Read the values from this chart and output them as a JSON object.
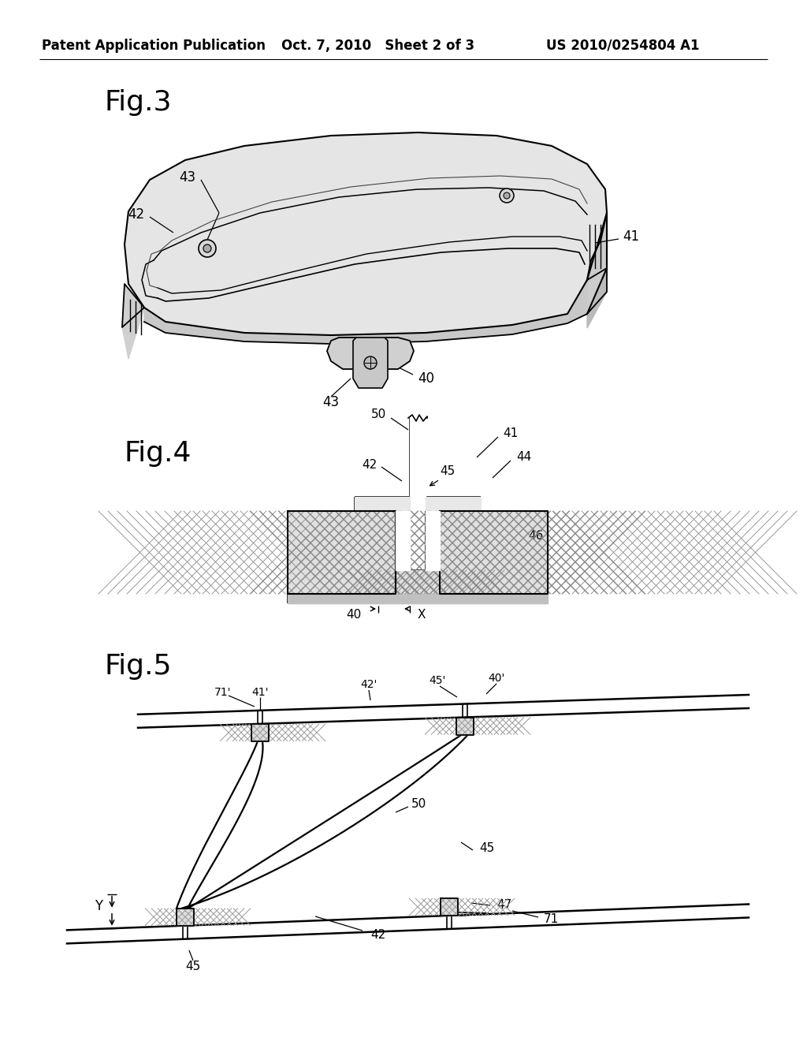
{
  "bg_color": "#ffffff",
  "header_left": "Patent Application Publication",
  "header_center": "Oct. 7, 2010   Sheet 2 of 3",
  "header_right": "US 2010/0254804 A1"
}
